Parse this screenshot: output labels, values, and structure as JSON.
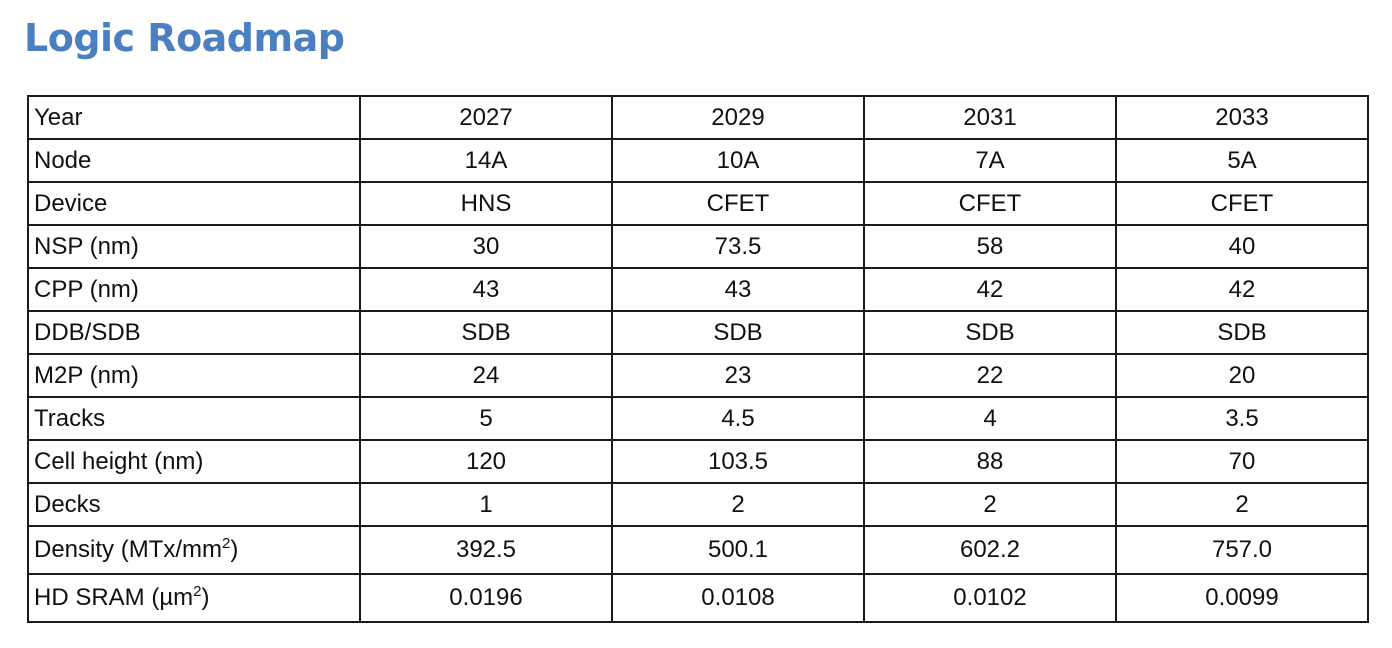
{
  "title": "Logic Roadmap",
  "colors": {
    "title": "#4a7fc1",
    "border": "#1a1a1a",
    "text": "#111111"
  },
  "table": {
    "rows": [
      {
        "label": "Year",
        "values": [
          "2027",
          "2029",
          "2031",
          "2033"
        ]
      },
      {
        "label": "Node",
        "values": [
          "14A",
          "10A",
          "7A",
          "5A"
        ]
      },
      {
        "label": "Device",
        "values": [
          "HNS",
          "CFET",
          "CFET",
          "CFET"
        ]
      },
      {
        "label": "NSP (nm)",
        "values": [
          "30",
          "73.5",
          "58",
          "40"
        ]
      },
      {
        "label": "CPP (nm)",
        "values": [
          "43",
          "43",
          "42",
          "42"
        ]
      },
      {
        "label": "DDB/SDB",
        "values": [
          "SDB",
          "SDB",
          "SDB",
          "SDB"
        ]
      },
      {
        "label": "M2P (nm)",
        "values": [
          "24",
          "23",
          "22",
          "20"
        ]
      },
      {
        "label": "Tracks",
        "values": [
          "5",
          "4.5",
          "4",
          "3.5"
        ]
      },
      {
        "label": "Cell height (nm)",
        "values": [
          "120",
          "103.5",
          "88",
          "70"
        ]
      },
      {
        "label": "Decks",
        "values": [
          "1",
          "2",
          "2",
          "2"
        ]
      },
      {
        "label": "Density (MTx/mm",
        "label_sup": "2",
        "label_tail": ")",
        "values": [
          "392.5",
          "500.1",
          "602.2",
          "757.0"
        ]
      },
      {
        "label": "HD SRAM (µm",
        "label_sup": "2",
        "label_tail": ")",
        "values": [
          "0.0196",
          "0.0108",
          "0.0102",
          "0.0099"
        ]
      }
    ]
  }
}
